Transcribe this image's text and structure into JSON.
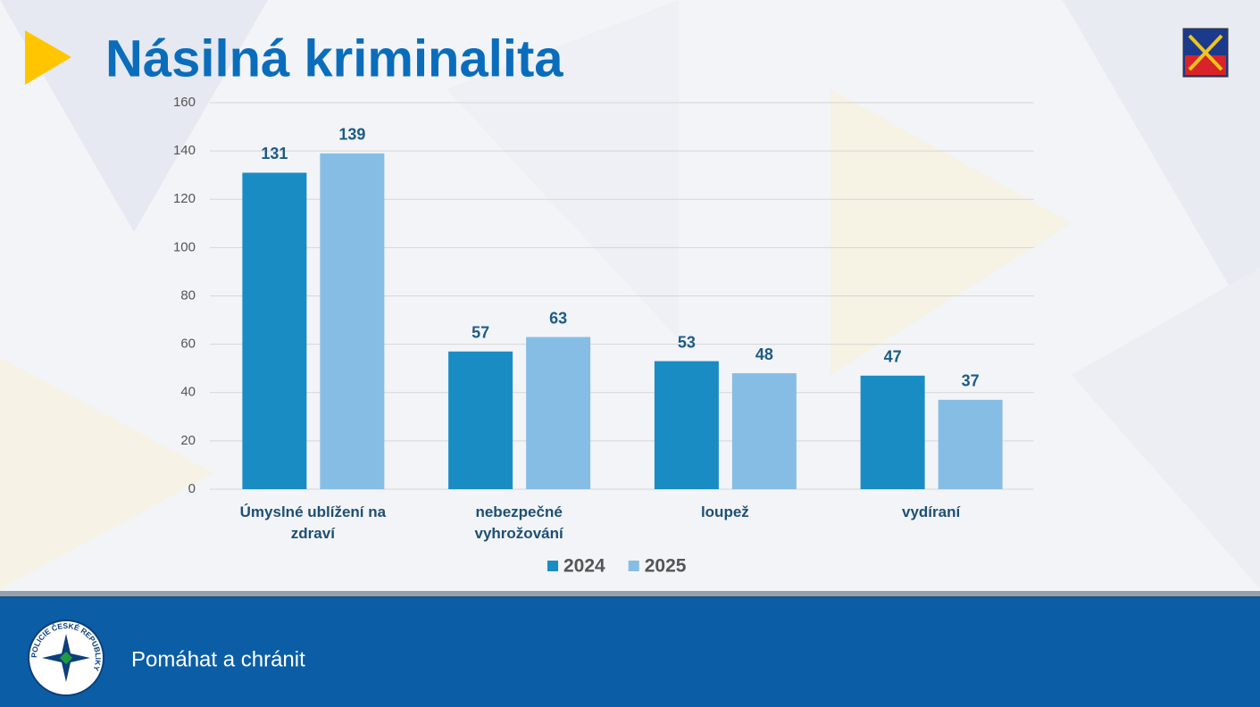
{
  "header": {
    "title": "Násilná kriminalita"
  },
  "footer": {
    "motto": "Pomáhat a chránit",
    "emblem_text": "POLICIE ČESKÉ REPUBLIKY"
  },
  "chart_data": {
    "type": "bar",
    "categories": [
      "Úmyslné ublížení na zdraví",
      "nebezpečné vyhrožování",
      "loupež",
      "vydíraní"
    ],
    "series": [
      {
        "name": "2024",
        "color": "#1a8cc4",
        "values": [
          131,
          57,
          53,
          47
        ]
      },
      {
        "name": "2025",
        "color": "#86bde5",
        "values": [
          139,
          63,
          48,
          37
        ]
      }
    ],
    "ylim": [
      0,
      160
    ],
    "yticks": [
      0,
      20,
      40,
      60,
      80,
      100,
      120,
      140,
      160
    ],
    "grid": true,
    "legend": "bottom"
  }
}
